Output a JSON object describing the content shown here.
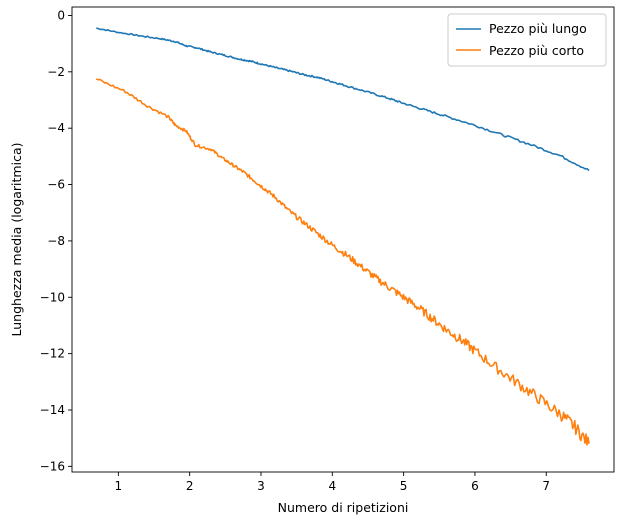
{
  "chart_data": {
    "type": "line",
    "title": "",
    "xlabel": "Numero di ripetizioni",
    "ylabel": "Lunghezza media (logaritmica)",
    "xlim": [
      0.35,
      7.95
    ],
    "ylim": [
      -16.2,
      0.3
    ],
    "xticks": [
      1,
      2,
      3,
      4,
      5,
      6,
      7
    ],
    "yticks": [
      0,
      -2,
      -4,
      -6,
      -8,
      -10,
      -12,
      -14,
      -16
    ],
    "xtick_labels": [
      "1",
      "2",
      "3",
      "4",
      "5",
      "6",
      "7"
    ],
    "ytick_labels": [
      "0",
      "−2",
      "−4",
      "−6",
      "−8",
      "−10",
      "−12",
      "−14",
      "−16"
    ],
    "grid": false,
    "legend_position": "top-right",
    "series": [
      {
        "name": "Pezzo più lungo",
        "color": "#1f77b4",
        "x": [
          0.69,
          1.0,
          1.3,
          1.6,
          1.8,
          1.95,
          2.1,
          2.3,
          2.5,
          2.7,
          2.85,
          3.0,
          3.2,
          3.4,
          3.6,
          3.8,
          4.0,
          4.2,
          4.5,
          4.8,
          5.0,
          5.3,
          5.6,
          6.0,
          6.4,
          6.8,
          7.2,
          7.6
        ],
        "y": [
          -0.45,
          -0.6,
          -0.72,
          -0.83,
          -0.93,
          -1.08,
          -1.15,
          -1.3,
          -1.42,
          -1.55,
          -1.62,
          -1.72,
          -1.85,
          -1.97,
          -2.1,
          -2.2,
          -2.35,
          -2.5,
          -2.72,
          -2.95,
          -3.12,
          -3.35,
          -3.58,
          -3.9,
          -4.25,
          -4.6,
          -4.98,
          -5.5
        ]
      },
      {
        "name": "Pezzo più corto",
        "color": "#ff7f0e",
        "x": [
          0.69,
          1.1,
          1.4,
          1.7,
          1.8,
          1.95,
          2.08,
          2.3,
          2.45,
          2.6,
          2.75,
          2.9,
          3.05,
          3.2,
          3.4,
          3.6,
          3.8,
          4.0,
          4.2,
          4.4,
          4.6,
          4.8,
          5.0,
          5.2,
          5.4,
          5.6,
          5.8,
          6.0,
          6.3,
          6.6,
          6.9,
          7.2,
          7.4,
          7.6
        ],
        "y": [
          -2.25,
          -2.7,
          -3.2,
          -3.6,
          -3.9,
          -4.1,
          -4.6,
          -4.75,
          -5.05,
          -5.3,
          -5.55,
          -5.85,
          -6.15,
          -6.45,
          -6.95,
          -7.35,
          -7.75,
          -8.15,
          -8.5,
          -8.9,
          -9.3,
          -9.65,
          -10.0,
          -10.35,
          -10.75,
          -11.15,
          -11.5,
          -11.9,
          -12.5,
          -13.05,
          -13.6,
          -14.15,
          -14.6,
          -15.2
        ]
      }
    ]
  }
}
